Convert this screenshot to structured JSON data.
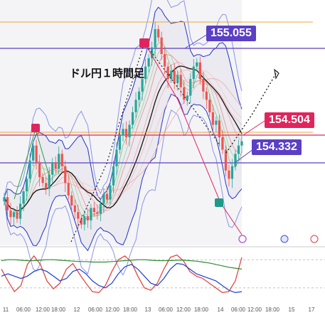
{
  "chart_data": {
    "type": "line",
    "title": "ドル円１時間足",
    "instrument_hint_colors": {
      "up": "#26a69a",
      "down": "#ef5350"
    },
    "price_levels": [
      {
        "value": 155.055,
        "label": "155.055",
        "color": "#5b3fc4"
      },
      {
        "value": 154.504,
        "label": "154.504",
        "color": "#e0245e"
      },
      {
        "value": 154.332,
        "label": "154.332",
        "color": "#5b3fc4"
      }
    ],
    "x_ticks": [
      "11",
      "06:00",
      "12:00",
      "18:00",
      "12",
      "06:00",
      "12:00",
      "18:00",
      "13",
      "06:00",
      "12:00",
      "18:00",
      "14",
      "06:00",
      "12:00",
      "18:00",
      "15",
      "17"
    ],
    "close_prices": [
      153.88,
      153.72,
      153.64,
      153.7,
      153.62,
      153.8,
      153.95,
      154.1,
      154.32,
      154.5,
      154.3,
      154.12,
      154.05,
      153.98,
      154.15,
      154.3,
      154.22,
      154.4,
      154.25,
      154.05,
      153.9,
      153.78,
      153.7,
      153.62,
      153.55,
      153.65,
      153.6,
      153.75,
      153.7,
      153.68,
      153.8,
      153.92,
      153.85,
      154.02,
      154.25,
      154.45,
      154.62,
      154.7,
      154.6,
      154.75,
      154.9,
      155.05,
      155.15,
      155.3,
      155.45,
      155.55,
      155.68,
      155.9,
      155.8,
      155.6,
      155.45,
      155.3,
      155.4,
      155.25,
      155.35,
      155.2,
      155.05,
      155.1,
      155.3,
      155.45,
      155.5,
      155.3,
      155.15,
      155.05,
      154.9,
      154.75,
      154.8,
      154.6,
      154.45,
      154.2,
      154.1,
      154.25,
      154.4,
      154.5,
      154.55
    ],
    "oscillator": {
      "series": [
        {
          "color": "#e53935",
          "values": [
            60,
            35,
            12,
            25,
            70,
            88,
            70,
            35,
            18,
            30,
            60,
            72,
            50,
            30,
            12,
            10,
            25,
            55,
            80,
            88,
            75,
            45,
            20,
            15,
            30,
            60,
            85,
            90,
            78,
            55,
            45,
            40,
            30,
            20,
            10,
            12,
            35,
            85
          ]
        },
        {
          "color": "#1e3fd0",
          "values": [
            45,
            50,
            45,
            40,
            45,
            55,
            60,
            55,
            45,
            35,
            40,
            55,
            60,
            50,
            35,
            25,
            20,
            30,
            50,
            65,
            70,
            60,
            45,
            30,
            25,
            40,
            60,
            72,
            70,
            60,
            50,
            45,
            40,
            35,
            25,
            15,
            10,
            12
          ]
        },
        {
          "color": "#2e8b2e",
          "values": [
            78,
            80,
            80,
            79,
            78,
            78,
            79,
            80,
            80,
            79,
            78,
            77,
            76,
            76,
            75,
            75,
            75,
            76,
            77,
            78,
            79,
            80,
            80,
            79,
            78,
            78,
            78,
            79,
            79,
            78,
            77,
            75,
            73,
            70,
            67,
            64,
            62,
            60
          ]
        }
      ],
      "ylim": [
        0,
        100
      ]
    }
  },
  "labels": {
    "title": "ドル円１時間足",
    "price_high": "155.055",
    "price_mid": "154.504",
    "price_low": "154.332"
  }
}
